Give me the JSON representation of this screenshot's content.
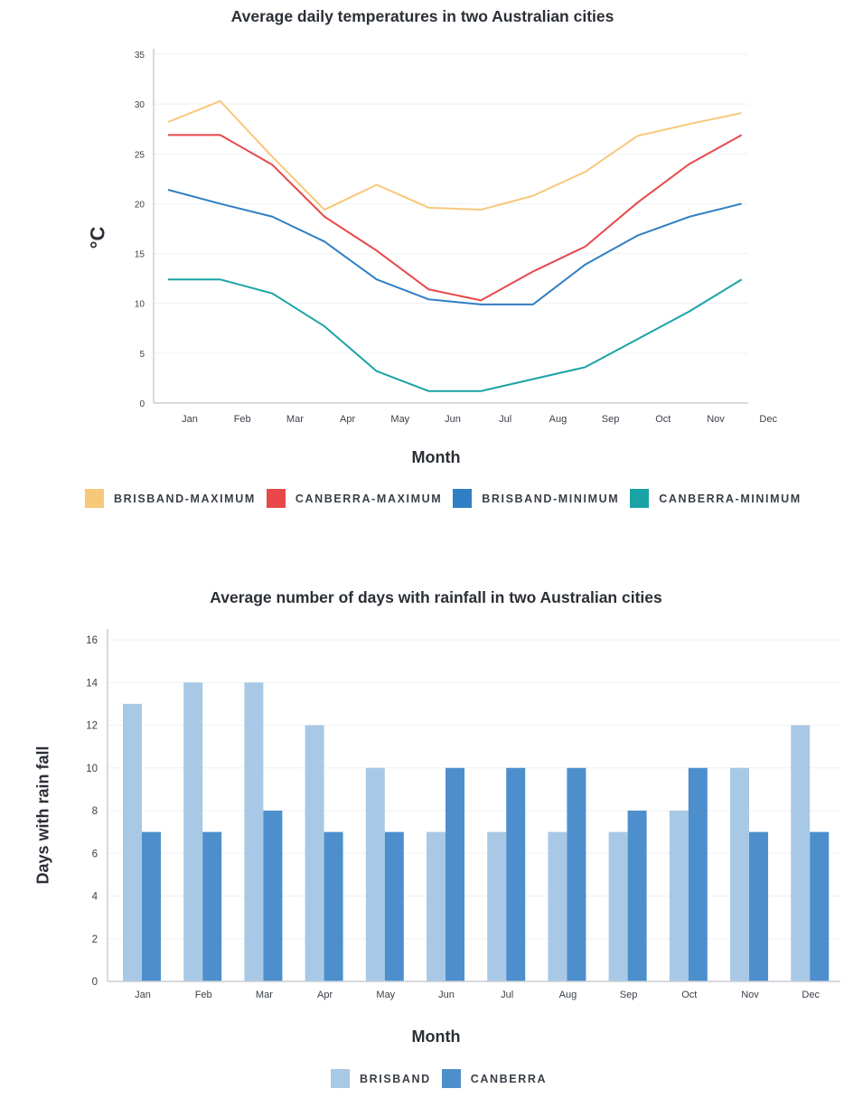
{
  "chart_data": [
    {
      "type": "line",
      "title": "Average daily temperatures in two Australian cities",
      "xlabel": "Month",
      "ylabel": "°C",
      "categories": [
        "Jan",
        "Feb",
        "Mar",
        "Apr",
        "May",
        "Jun",
        "Jul",
        "Aug",
        "Sep",
        "Oct",
        "Nov",
        "Dec"
      ],
      "ylim": [
        0,
        35
      ],
      "yticks": [
        0,
        5,
        10,
        15,
        20,
        25,
        30,
        35
      ],
      "grid": true,
      "legend_position": "bottom",
      "series": [
        {
          "name": "BRISBAND-MAXIMUM",
          "color": "#f7c87a",
          "values": [
            28.2,
            30.3,
            24.7,
            19.4,
            21.9,
            19.6,
            19.4,
            20.8,
            23.2,
            26.8,
            28.0,
            29.1
          ]
        },
        {
          "name": "CANBERRA-MAXIMUM",
          "color": "#e8484a",
          "values": [
            26.9,
            26.9,
            23.9,
            18.7,
            15.3,
            11.4,
            10.3,
            13.2,
            15.7,
            20.1,
            24.0,
            26.9
          ]
        },
        {
          "name": "BRISBAND-MINIMUM",
          "color": "#2f7fc4",
          "values": [
            21.4,
            20.0,
            18.7,
            16.2,
            12.4,
            10.4,
            9.9,
            9.9,
            13.9,
            16.8,
            18.7,
            20.0
          ]
        },
        {
          "name": "CANBERRA-MINIMUM",
          "color": "#1aa3a6",
          "values": [
            12.4,
            12.4,
            11.0,
            7.7,
            3.2,
            1.2,
            1.2,
            2.4,
            3.6,
            6.4,
            9.2,
            12.4
          ]
        }
      ]
    },
    {
      "type": "bar",
      "title": "Average number of days with rainfall in two Australian cities",
      "xlabel": "Month",
      "ylabel": "Days with rain fall",
      "categories": [
        "Jan",
        "Feb",
        "Mar",
        "Apr",
        "May",
        "Jun",
        "Jul",
        "Aug",
        "Sep",
        "Oct",
        "Nov",
        "Dec"
      ],
      "ylim": [
        0,
        16
      ],
      "yticks": [
        0,
        2,
        4,
        6,
        8,
        10,
        12,
        14,
        16
      ],
      "grid": true,
      "legend_position": "bottom",
      "series": [
        {
          "name": "BRISBAND",
          "color": "#a8c9e6",
          "values": [
            13,
            14,
            14,
            12,
            10,
            7,
            7,
            7,
            7,
            8,
            10,
            12
          ]
        },
        {
          "name": "CANBERRA",
          "color": "#4d8fcc",
          "values": [
            7,
            7,
            8,
            7,
            7,
            10,
            10,
            10,
            8,
            10,
            7,
            7
          ]
        }
      ]
    }
  ]
}
